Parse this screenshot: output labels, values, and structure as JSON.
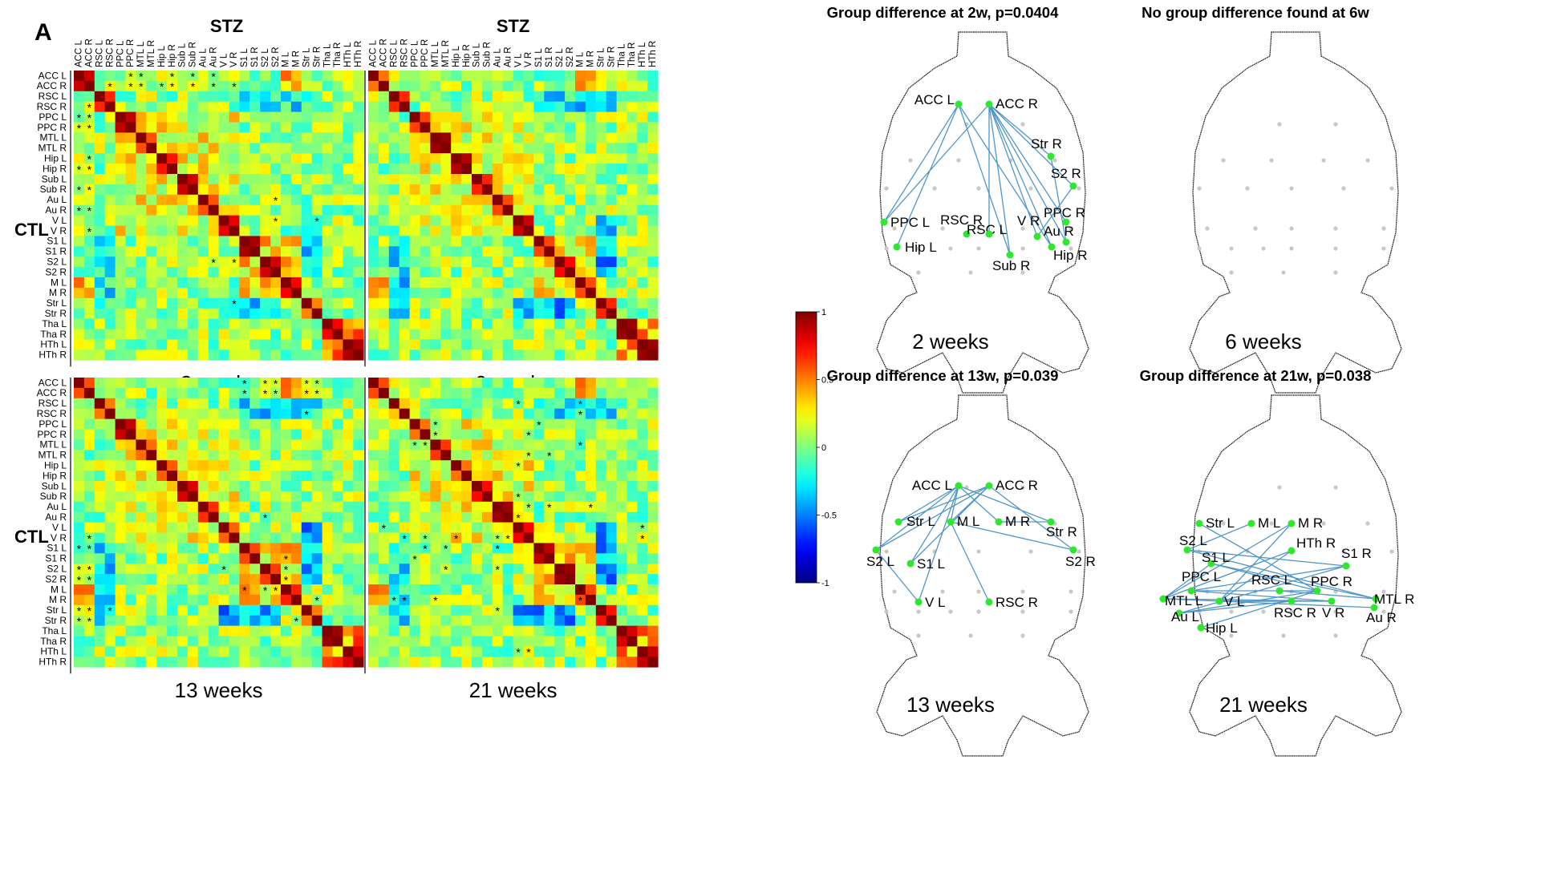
{
  "panel_label": "A",
  "stz_label": "STZ",
  "ctl_label": "CTL",
  "regions": [
    "ACC L",
    "ACC R",
    "RSC L",
    "RSC R",
    "PPC L",
    "PPC R",
    "MTL L",
    "MTL R",
    "Hip L",
    "Hip R",
    "Sub L",
    "Sub R",
    "Au L",
    "Au R",
    "V L",
    "V R",
    "S1 L",
    "S1 R",
    "S2 L",
    "S2 R",
    "M L",
    "M R",
    "Str L",
    "Str R",
    "Tha L",
    "Tha R",
    "HTh L",
    "HTh R"
  ],
  "colorbar": {
    "ticks": [
      "1",
      "0.5",
      "0",
      "-0.5",
      "-1"
    ],
    "range": [
      -1,
      1
    ]
  },
  "matrix_captions": [
    "2 weeks",
    "6 weeks",
    "13 weeks",
    "21 weeks"
  ],
  "brain_panels": [
    {
      "title": "Group difference at 2w, p=0.0404",
      "caption": "2 weeks",
      "nodes": [
        "ACC L",
        "ACC R",
        "Str R",
        "S2 R",
        "PPC L",
        "RSC L",
        "RSC R",
        "V R",
        "PPC R",
        "Au R",
        "Hip L",
        "Sub R",
        "Hip R"
      ]
    },
    {
      "title": "No group difference found at 6w",
      "caption": "6 weeks",
      "nodes": []
    },
    {
      "title": "Group difference at 13w, p=0.039",
      "caption": "13 weeks",
      "nodes": [
        "ACC L",
        "ACC R",
        "Str L",
        "M L",
        "M R",
        "Str R",
        "S2 L",
        "S1 L",
        "S2 R",
        "V L",
        "RSC R"
      ]
    },
    {
      "title": "Group difference at 21w, p=0.038",
      "caption": "21 weeks",
      "nodes": [
        "Str L",
        "M L",
        "M R",
        "S2 L",
        "HTh R",
        "S1 R",
        "S1 L",
        "PPC L",
        "RSC L",
        "PPC R",
        "MTL L",
        "V L",
        "MTL R",
        "Au L",
        "RSC R",
        "V R",
        "Au R",
        "Hip L"
      ]
    }
  ],
  "chart_data": {
    "type": "heatmap",
    "description_of_axes": "28x28 correlation matrices, upper triangle = STZ, lower triangle = CTL",
    "value_range": [
      -1,
      1
    ]
  }
}
